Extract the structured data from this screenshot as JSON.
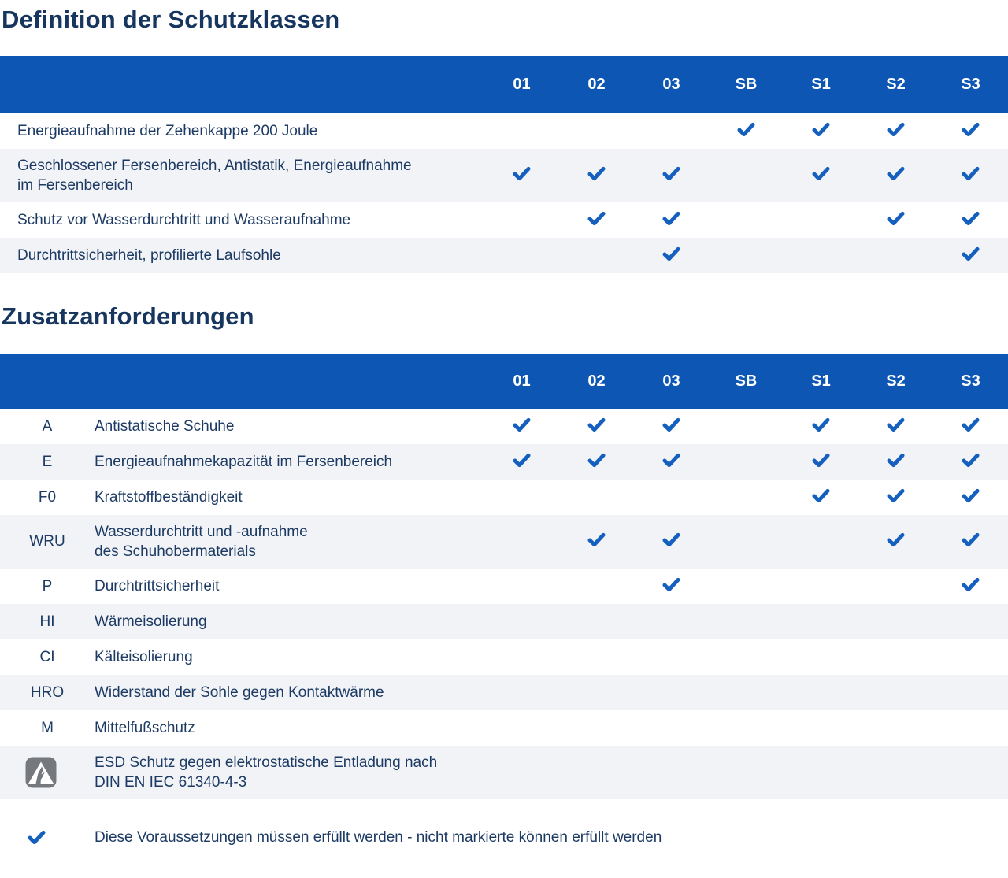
{
  "section1": {
    "title": "Definition der Schutzklassen",
    "columns": [
      "01",
      "02",
      "03",
      "SB",
      "S1",
      "S2",
      "S3"
    ],
    "rows": [
      {
        "label": "Energieaufnahme der Zehenkappe 200 Joule",
        "checks": [
          0,
          0,
          0,
          1,
          1,
          1,
          1
        ]
      },
      {
        "label": "Geschlossener Fersenbereich, Antistatik, Energieaufnahme\nim Fersenbereich",
        "checks": [
          1,
          1,
          1,
          0,
          1,
          1,
          1
        ]
      },
      {
        "label": "Schutz vor Wasserdurchtritt und Wasseraufnahme",
        "checks": [
          0,
          1,
          1,
          0,
          0,
          1,
          1
        ]
      },
      {
        "label": "Durchtrittsicherheit, profilierte Laufsohle",
        "checks": [
          0,
          0,
          1,
          0,
          0,
          0,
          1
        ]
      }
    ]
  },
  "section2": {
    "title": "Zusatzanforderungen",
    "columns": [
      "01",
      "02",
      "03",
      "SB",
      "S1",
      "S2",
      "S3"
    ],
    "rows": [
      {
        "code": "A",
        "label": "Antistatische Schuhe",
        "checks": [
          1,
          1,
          1,
          0,
          1,
          1,
          1
        ]
      },
      {
        "code": "E",
        "label": "Energieaufnahmekapazität im Fersenbereich",
        "checks": [
          1,
          1,
          1,
          0,
          1,
          1,
          1
        ]
      },
      {
        "code": "F0",
        "label": "Kraftstoffbeständigkeit",
        "checks": [
          0,
          0,
          0,
          0,
          1,
          1,
          1
        ]
      },
      {
        "code": "WRU",
        "label": "Wasserdurchtritt und -aufnahme\ndes Schuhobermaterials",
        "checks": [
          0,
          1,
          1,
          0,
          0,
          1,
          1
        ]
      },
      {
        "code": "P",
        "label": "Durchtrittsicherheit",
        "checks": [
          0,
          0,
          1,
          0,
          0,
          0,
          1
        ]
      },
      {
        "code": "HI",
        "label": "Wärmeisolierung",
        "checks": [
          0,
          0,
          0,
          0,
          0,
          0,
          0
        ]
      },
      {
        "code": "CI",
        "label": "Kälteisolierung",
        "checks": [
          0,
          0,
          0,
          0,
          0,
          0,
          0
        ]
      },
      {
        "code": "HRO",
        "label": "Widerstand der Sohle gegen Kontaktwärme",
        "checks": [
          0,
          0,
          0,
          0,
          0,
          0,
          0
        ]
      },
      {
        "code": "M",
        "label": "Mittelfußschutz",
        "checks": [
          0,
          0,
          0,
          0,
          0,
          0,
          0
        ]
      },
      {
        "code": "",
        "icon": "esd-icon",
        "label": "ESD Schutz gegen elektrostatische Entladung nach\nDIN EN IEC 61340-4-3",
        "checks": [
          0,
          0,
          0,
          0,
          0,
          0,
          0
        ]
      }
    ]
  },
  "legend": {
    "icon": "check-icon",
    "text": "Diese Voraussetzungen müssen erfüllt werden - nicht markierte können erfüllt werden"
  },
  "colors": {
    "header_blue": "#0d56b4",
    "check_blue": "#1560be",
    "row_alt_bg": "#f1f3f6",
    "title_navy": "#16365f",
    "text_navy": "#1c3a63",
    "esd_icon_gray": "#75787d",
    "header_text": "#ffffff"
  }
}
